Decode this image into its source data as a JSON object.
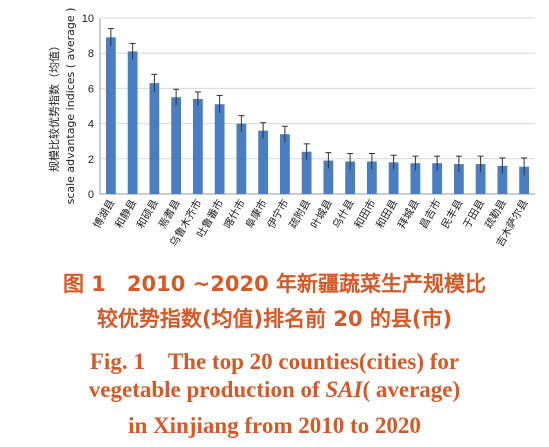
{
  "chart_data": {
    "type": "bar",
    "ylabel_cn": "规模比较优势指数（均值）",
    "ylabel_en": "scale advantage indices ( average )",
    "ylim": [
      0,
      10
    ],
    "yticks": [
      0,
      2,
      4,
      6,
      8,
      10
    ],
    "categories": [
      "博湖县",
      "和静县",
      "和硕县",
      "焉耆县",
      "乌鲁木齐市",
      "吐鲁番市",
      "喀什市",
      "阜康市",
      "伊宁市",
      "疏附县",
      "叶城县",
      "乌什县",
      "和田市",
      "和田县",
      "拜城县",
      "昌吉市",
      "民丰县",
      "于田县",
      "疏勒县",
      "吉木萨尔县"
    ],
    "values": [
      8.9,
      8.1,
      6.3,
      5.5,
      5.4,
      5.1,
      4.0,
      3.6,
      3.4,
      2.4,
      1.9,
      1.85,
      1.85,
      1.8,
      1.75,
      1.75,
      1.7,
      1.7,
      1.6,
      1.55
    ],
    "errors": [
      0.5,
      0.45,
      0.5,
      0.45,
      0.4,
      0.5,
      0.45,
      0.45,
      0.45,
      0.45,
      0.45,
      0.45,
      0.45,
      0.4,
      0.4,
      0.4,
      0.45,
      0.45,
      0.45,
      0.5
    ],
    "bar_color": "#4a7ec0"
  },
  "caption": {
    "cn_line1": "图 1　2010 ~2020 年新疆蔬菜生产规模比",
    "cn_line2": "较优势指数(均值)排名前 20 的县(市)",
    "en_line1": "Fig. 1　The top 20 counties(cities) for",
    "en_line2_a": "vegetable production of ",
    "en_line2_b": "SAI",
    "en_line2_c": "( average)",
    "en_line3": "in Xinjiang from 2010 to 2020"
  }
}
